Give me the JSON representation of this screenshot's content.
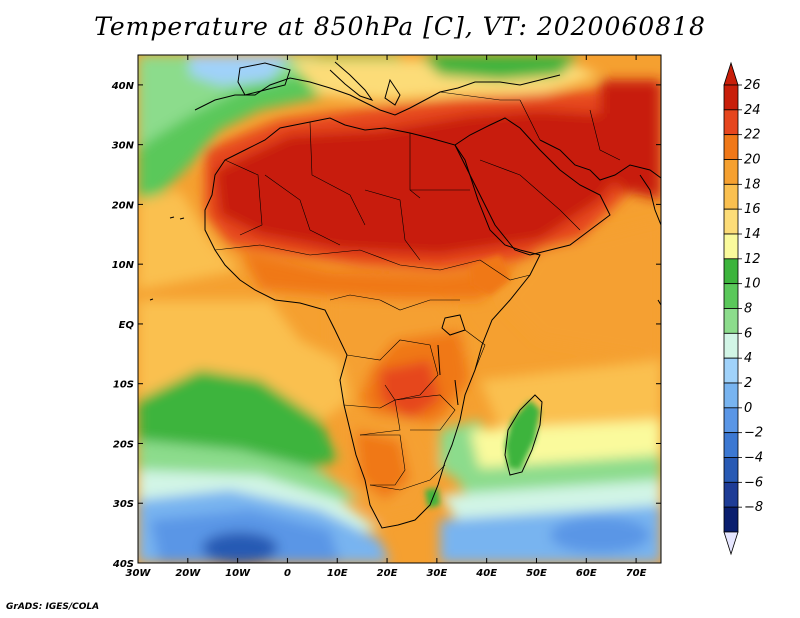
{
  "title": "Temperature at 850hPa [C], VT: 2020060818",
  "footer": "GrADS: IGES/COLA",
  "map": {
    "lon_range": [
      -30,
      75
    ],
    "lat_range": [
      -40,
      45
    ],
    "lat_ticks": [
      {
        "value": 40,
        "label": "40N"
      },
      {
        "value": 30,
        "label": "30N"
      },
      {
        "value": 20,
        "label": "20N"
      },
      {
        "value": 10,
        "label": "10N"
      },
      {
        "value": 0,
        "label": "EQ"
      },
      {
        "value": -10,
        "label": "10S"
      },
      {
        "value": -20,
        "label": "20S"
      },
      {
        "value": -30,
        "label": "30S"
      },
      {
        "value": -40,
        "label": "40S"
      }
    ],
    "lon_ticks": [
      {
        "value": -30,
        "label": "30W"
      },
      {
        "value": -20,
        "label": "20W"
      },
      {
        "value": -10,
        "label": "10W"
      },
      {
        "value": 0,
        "label": "0"
      },
      {
        "value": 10,
        "label": "10E"
      },
      {
        "value": 20,
        "label": "20E"
      },
      {
        "value": 30,
        "label": "30E"
      },
      {
        "value": 40,
        "label": "40E"
      },
      {
        "value": 50,
        "label": "50E"
      },
      {
        "value": 60,
        "label": "60E"
      },
      {
        "value": 70,
        "label": "70E"
      }
    ]
  },
  "colorbar": {
    "levels": [
      "26",
      "24",
      "22",
      "20",
      "18",
      "16",
      "14",
      "12",
      "10",
      "8",
      "6",
      "4",
      "2",
      "0",
      "−2",
      "−4",
      "−6",
      "−8"
    ],
    "colors": [
      "#c81e0a",
      "#e6461e",
      "#f07818",
      "#f5a030",
      "#fac050",
      "#fcdc78",
      "#fafa9c",
      "#3cb43c",
      "#5ac85a",
      "#8cdc8c",
      "#d2f5e6",
      "#a0d2fa",
      "#78b4f0",
      "#5a96e6",
      "#3c78d2",
      "#285ab4",
      "#1e3c96",
      "#0a1e6e"
    ],
    "top_color": "#c81e0a",
    "bottom_color": "#e6e6ff"
  }
}
